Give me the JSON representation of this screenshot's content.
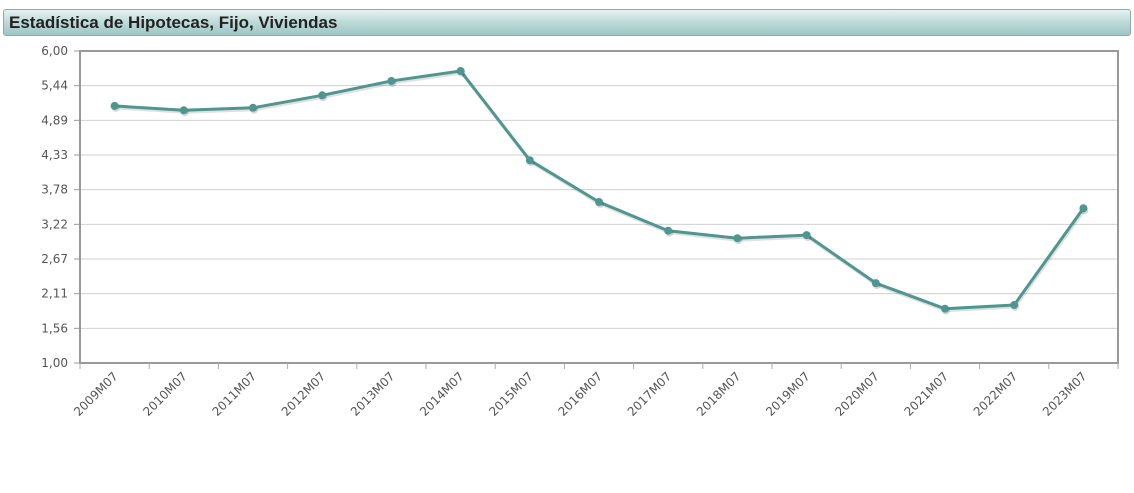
{
  "header": {
    "title": "Estadística de Hipotecas, Fijo, Viviendas"
  },
  "chart_data": {
    "type": "line",
    "title": "Estadística de Hipotecas, Fijo, Viviendas",
    "categories": [
      "2009M07",
      "2010M07",
      "2011M07",
      "2012M07",
      "2013M07",
      "2014M07",
      "2015M07",
      "2016M07",
      "2017M07",
      "2018M07",
      "2019M07",
      "2020M07",
      "2021M07",
      "2022M07",
      "2023M07"
    ],
    "series": [
      {
        "values": [
          5.12,
          5.05,
          5.09,
          5.29,
          5.52,
          5.68,
          4.25,
          3.58,
          3.12,
          3.0,
          3.05,
          2.28,
          1.87,
          1.93,
          3.48
        ],
        "color": "#4f9690"
      }
    ],
    "ylim": [
      1.0,
      6.0
    ],
    "yticks": [
      "1,00",
      "1,56",
      "2,11",
      "2,67",
      "3,22",
      "3,78",
      "4,33",
      "4,89",
      "5,44",
      "6,00"
    ],
    "grid": true,
    "xlabel": "",
    "ylabel": ""
  }
}
